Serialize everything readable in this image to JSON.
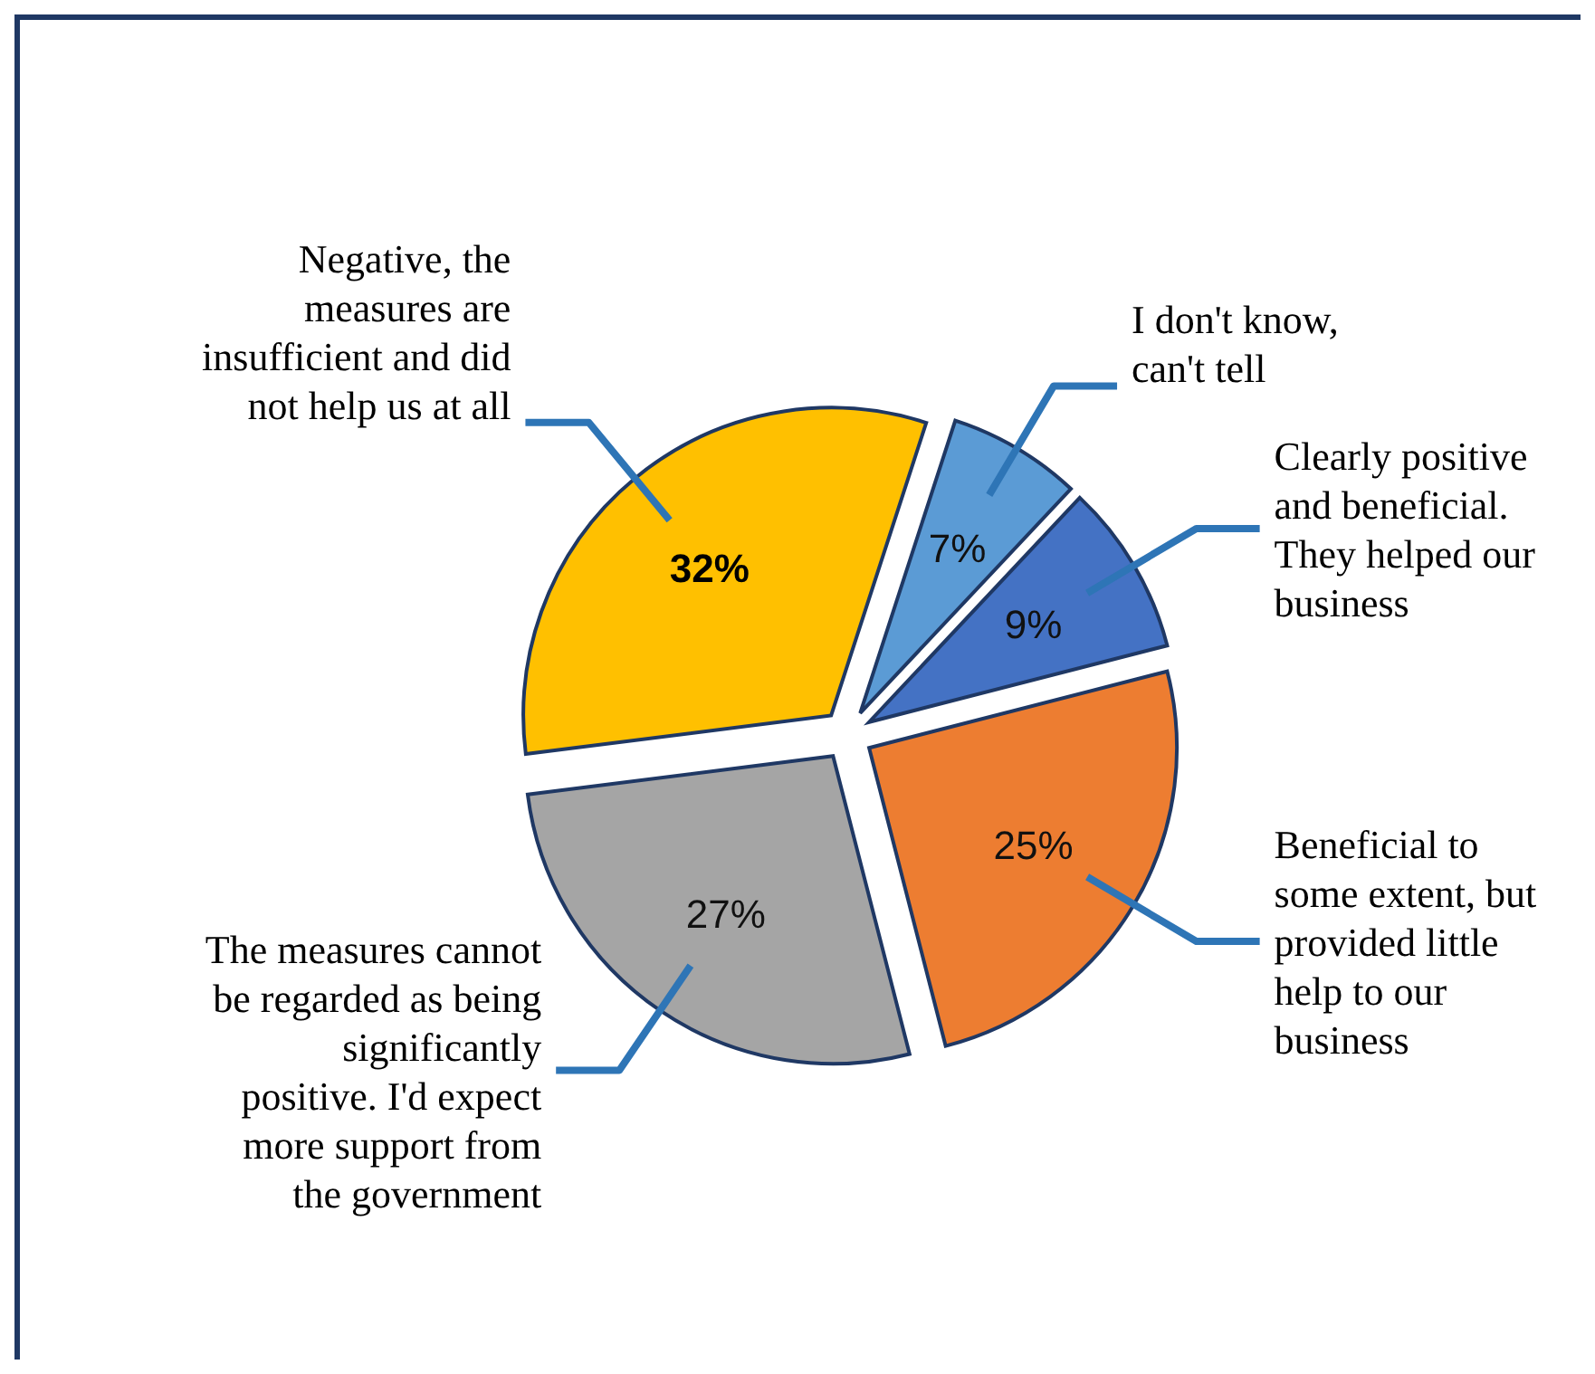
{
  "chart_data": {
    "type": "pie",
    "categories": [
      "I don't know, can't tell",
      "Clearly positive and beneficial. They helped our business",
      "Beneficial to some extent, but provided little help to our business",
      "The measures cannot be regarded as being significantly positive. I'd expect more support from the government",
      "Negative, the measures are insufficient and did not help us at all"
    ],
    "values": [
      7,
      9,
      25,
      27,
      32
    ],
    "colors": [
      "#5b9bd5",
      "#4472c4",
      "#ed7d31",
      "#a5a5a5",
      "#ffc000"
    ],
    "value_labels": [
      "7%",
      "9%",
      "25%",
      "27%",
      "32%"
    ],
    "legend": false
  }
}
